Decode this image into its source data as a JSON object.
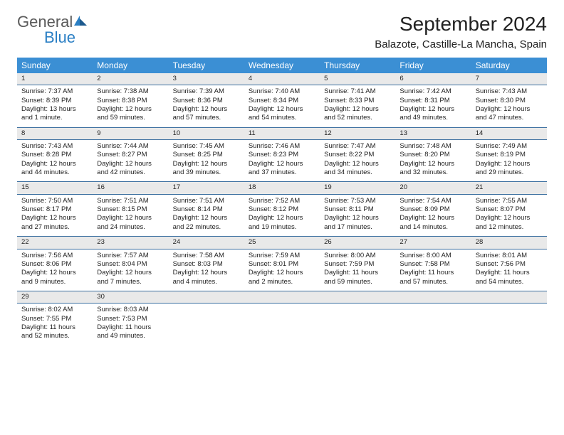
{
  "logo": {
    "text1": "General",
    "text2": "Blue"
  },
  "title": "September 2024",
  "location": "Balazote, Castille-La Mancha, Spain",
  "colors": {
    "header_bg": "#3b8fd4",
    "header_text": "#ffffff",
    "daynum_bg": "#e9e9e9",
    "week_border": "#3b6fa0",
    "logo_gray": "#5a5a5a",
    "logo_blue": "#2a7fc4"
  },
  "day_names": [
    "Sunday",
    "Monday",
    "Tuesday",
    "Wednesday",
    "Thursday",
    "Friday",
    "Saturday"
  ],
  "weeks": [
    [
      {
        "n": "1",
        "sr": "Sunrise: 7:37 AM",
        "ss": "Sunset: 8:39 PM",
        "dl": "Daylight: 13 hours and 1 minute."
      },
      {
        "n": "2",
        "sr": "Sunrise: 7:38 AM",
        "ss": "Sunset: 8:38 PM",
        "dl": "Daylight: 12 hours and 59 minutes."
      },
      {
        "n": "3",
        "sr": "Sunrise: 7:39 AM",
        "ss": "Sunset: 8:36 PM",
        "dl": "Daylight: 12 hours and 57 minutes."
      },
      {
        "n": "4",
        "sr": "Sunrise: 7:40 AM",
        "ss": "Sunset: 8:34 PM",
        "dl": "Daylight: 12 hours and 54 minutes."
      },
      {
        "n": "5",
        "sr": "Sunrise: 7:41 AM",
        "ss": "Sunset: 8:33 PM",
        "dl": "Daylight: 12 hours and 52 minutes."
      },
      {
        "n": "6",
        "sr": "Sunrise: 7:42 AM",
        "ss": "Sunset: 8:31 PM",
        "dl": "Daylight: 12 hours and 49 minutes."
      },
      {
        "n": "7",
        "sr": "Sunrise: 7:43 AM",
        "ss": "Sunset: 8:30 PM",
        "dl": "Daylight: 12 hours and 47 minutes."
      }
    ],
    [
      {
        "n": "8",
        "sr": "Sunrise: 7:43 AM",
        "ss": "Sunset: 8:28 PM",
        "dl": "Daylight: 12 hours and 44 minutes."
      },
      {
        "n": "9",
        "sr": "Sunrise: 7:44 AM",
        "ss": "Sunset: 8:27 PM",
        "dl": "Daylight: 12 hours and 42 minutes."
      },
      {
        "n": "10",
        "sr": "Sunrise: 7:45 AM",
        "ss": "Sunset: 8:25 PM",
        "dl": "Daylight: 12 hours and 39 minutes."
      },
      {
        "n": "11",
        "sr": "Sunrise: 7:46 AM",
        "ss": "Sunset: 8:23 PM",
        "dl": "Daylight: 12 hours and 37 minutes."
      },
      {
        "n": "12",
        "sr": "Sunrise: 7:47 AM",
        "ss": "Sunset: 8:22 PM",
        "dl": "Daylight: 12 hours and 34 minutes."
      },
      {
        "n": "13",
        "sr": "Sunrise: 7:48 AM",
        "ss": "Sunset: 8:20 PM",
        "dl": "Daylight: 12 hours and 32 minutes."
      },
      {
        "n": "14",
        "sr": "Sunrise: 7:49 AM",
        "ss": "Sunset: 8:19 PM",
        "dl": "Daylight: 12 hours and 29 minutes."
      }
    ],
    [
      {
        "n": "15",
        "sr": "Sunrise: 7:50 AM",
        "ss": "Sunset: 8:17 PM",
        "dl": "Daylight: 12 hours and 27 minutes."
      },
      {
        "n": "16",
        "sr": "Sunrise: 7:51 AM",
        "ss": "Sunset: 8:15 PM",
        "dl": "Daylight: 12 hours and 24 minutes."
      },
      {
        "n": "17",
        "sr": "Sunrise: 7:51 AM",
        "ss": "Sunset: 8:14 PM",
        "dl": "Daylight: 12 hours and 22 minutes."
      },
      {
        "n": "18",
        "sr": "Sunrise: 7:52 AM",
        "ss": "Sunset: 8:12 PM",
        "dl": "Daylight: 12 hours and 19 minutes."
      },
      {
        "n": "19",
        "sr": "Sunrise: 7:53 AM",
        "ss": "Sunset: 8:11 PM",
        "dl": "Daylight: 12 hours and 17 minutes."
      },
      {
        "n": "20",
        "sr": "Sunrise: 7:54 AM",
        "ss": "Sunset: 8:09 PM",
        "dl": "Daylight: 12 hours and 14 minutes."
      },
      {
        "n": "21",
        "sr": "Sunrise: 7:55 AM",
        "ss": "Sunset: 8:07 PM",
        "dl": "Daylight: 12 hours and 12 minutes."
      }
    ],
    [
      {
        "n": "22",
        "sr": "Sunrise: 7:56 AM",
        "ss": "Sunset: 8:06 PM",
        "dl": "Daylight: 12 hours and 9 minutes."
      },
      {
        "n": "23",
        "sr": "Sunrise: 7:57 AM",
        "ss": "Sunset: 8:04 PM",
        "dl": "Daylight: 12 hours and 7 minutes."
      },
      {
        "n": "24",
        "sr": "Sunrise: 7:58 AM",
        "ss": "Sunset: 8:03 PM",
        "dl": "Daylight: 12 hours and 4 minutes."
      },
      {
        "n": "25",
        "sr": "Sunrise: 7:59 AM",
        "ss": "Sunset: 8:01 PM",
        "dl": "Daylight: 12 hours and 2 minutes."
      },
      {
        "n": "26",
        "sr": "Sunrise: 8:00 AM",
        "ss": "Sunset: 7:59 PM",
        "dl": "Daylight: 11 hours and 59 minutes."
      },
      {
        "n": "27",
        "sr": "Sunrise: 8:00 AM",
        "ss": "Sunset: 7:58 PM",
        "dl": "Daylight: 11 hours and 57 minutes."
      },
      {
        "n": "28",
        "sr": "Sunrise: 8:01 AM",
        "ss": "Sunset: 7:56 PM",
        "dl": "Daylight: 11 hours and 54 minutes."
      }
    ],
    [
      {
        "n": "29",
        "sr": "Sunrise: 8:02 AM",
        "ss": "Sunset: 7:55 PM",
        "dl": "Daylight: 11 hours and 52 minutes."
      },
      {
        "n": "30",
        "sr": "Sunrise: 8:03 AM",
        "ss": "Sunset: 7:53 PM",
        "dl": "Daylight: 11 hours and 49 minutes."
      },
      null,
      null,
      null,
      null,
      null
    ]
  ]
}
